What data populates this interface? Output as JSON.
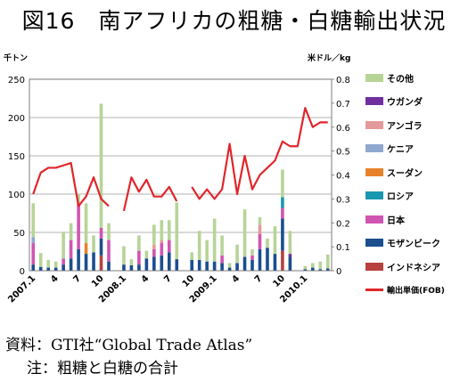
{
  "title": "図16　南アフリカの粗糖・白糖輸出状況",
  "source": "資料：GTI社“Global Trade Atlas”",
  "note": "注：粗糖と白糖の合計",
  "colors": {
    "その他": "#b7d497",
    "ウガンダ": "#7030a0",
    "アンゴラ": "#e49a9a",
    "ケニア": "#8fa8cf",
    "スーダン": "#e8822a",
    "ロシア": "#1898b0",
    "日本": "#cf55b2",
    "モザンビーク": "#1b4e8f",
    "インドネシア": "#b7413e",
    "line": "#e0262a"
  },
  "chart_data": {
    "type": "bar",
    "stacked": true,
    "left_axis_unit": "千トン",
    "right_axis_unit": "米ドル／kg",
    "y_left": {
      "min": 0,
      "max": 250,
      "ticks": [
        0,
        50,
        100,
        150,
        200,
        250
      ]
    },
    "y_right": {
      "min": 0,
      "max": 0.8,
      "ticks": [
        "0",
        "0.1",
        "0.2",
        "0.3",
        "0.4",
        "0.5",
        "0.6",
        "0.7",
        "0.8"
      ]
    },
    "grid": true,
    "legend_position": "right",
    "x_tick_labels": [
      {
        "i": 0,
        "label": "2007.1"
      },
      {
        "i": 3,
        "label": "4"
      },
      {
        "i": 6,
        "label": "7"
      },
      {
        "i": 9,
        "label": "10"
      },
      {
        "i": 12,
        "label": "2008.1"
      },
      {
        "i": 15,
        "label": "4"
      },
      {
        "i": 18,
        "label": "7"
      },
      {
        "i": 21,
        "label": "10"
      },
      {
        "i": 24,
        "label": "2009.1"
      },
      {
        "i": 27,
        "label": "4"
      },
      {
        "i": 30,
        "label": "7"
      },
      {
        "i": 33,
        "label": "10"
      },
      {
        "i": 36,
        "label": "2010.1"
      }
    ],
    "series": [
      {
        "name": "インドネシア",
        "values": [
          0,
          0,
          0,
          0,
          0,
          0,
          0,
          0,
          0,
          20,
          0,
          0,
          0,
          0,
          0,
          0,
          0,
          0,
          0,
          0,
          0,
          0,
          0,
          0,
          0,
          0,
          0,
          0,
          0,
          0,
          0,
          0,
          0,
          26,
          0,
          0,
          0,
          0,
          0,
          0
        ]
      },
      {
        "name": "モザンビーク",
        "values": [
          8,
          5,
          4,
          4,
          8,
          16,
          28,
          22,
          24,
          22,
          12,
          0,
          8,
          7,
          8,
          16,
          18,
          20,
          24,
          15,
          0,
          14,
          14,
          12,
          12,
          10,
          4,
          10,
          18,
          14,
          28,
          30,
          22,
          42,
          18,
          0,
          2,
          4,
          2,
          3
        ]
      },
      {
        "name": "日本",
        "values": [
          28,
          0,
          0,
          0,
          8,
          24,
          60,
          0,
          0,
          14,
          28,
          0,
          0,
          0,
          18,
          0,
          10,
          16,
          16,
          0,
          0,
          0,
          0,
          0,
          0,
          10,
          0,
          0,
          0,
          6,
          20,
          0,
          0,
          14,
          0,
          0,
          0,
          0,
          0,
          0
        ]
      },
      {
        "name": "ロシア",
        "values": [
          0,
          0,
          0,
          0,
          0,
          0,
          0,
          0,
          0,
          0,
          0,
          0,
          0,
          0,
          0,
          0,
          0,
          0,
          0,
          0,
          0,
          0,
          0,
          0,
          0,
          0,
          0,
          0,
          0,
          0,
          0,
          0,
          0,
          14,
          0,
          0,
          0,
          0,
          0,
          0
        ]
      },
      {
        "name": "スーダン",
        "values": [
          0,
          0,
          0,
          0,
          0,
          0,
          0,
          14,
          0,
          0,
          0,
          0,
          0,
          0,
          0,
          0,
          0,
          0,
          0,
          0,
          0,
          0,
          0,
          0,
          0,
          0,
          0,
          0,
          0,
          0,
          0,
          0,
          0,
          0,
          0,
          0,
          0,
          0,
          0,
          0
        ]
      },
      {
        "name": "ケニア",
        "values": [
          8,
          0,
          0,
          0,
          0,
          0,
          0,
          0,
          0,
          0,
          0,
          0,
          0,
          0,
          0,
          0,
          0,
          0,
          0,
          0,
          0,
          0,
          0,
          0,
          0,
          0,
          0,
          0,
          0,
          0,
          0,
          0,
          0,
          0,
          0,
          0,
          0,
          0,
          0,
          0
        ]
      },
      {
        "name": "アンゴラ",
        "values": [
          0,
          0,
          0,
          0,
          0,
          0,
          0,
          0,
          0,
          0,
          0,
          0,
          0,
          0,
          0,
          0,
          6,
          4,
          0,
          0,
          0,
          0,
          0,
          0,
          0,
          0,
          0,
          0,
          0,
          0,
          12,
          0,
          0,
          0,
          0,
          0,
          0,
          0,
          0,
          0
        ]
      },
      {
        "name": "ウガンダ",
        "values": [
          0,
          0,
          0,
          0,
          0,
          0,
          0,
          0,
          0,
          0,
          0,
          0,
          0,
          0,
          0,
          0,
          0,
          0,
          0,
          0,
          0,
          0,
          0,
          0,
          0,
          0,
          0,
          0,
          0,
          0,
          0,
          0,
          0,
          0,
          4,
          0,
          0,
          0,
          0,
          0
        ]
      },
      {
        "name": "その他",
        "values": [
          44,
          18,
          10,
          8,
          35,
          22,
          12,
          52,
          22,
          162,
          22,
          0,
          24,
          8,
          20,
          10,
          26,
          26,
          26,
          74,
          0,
          10,
          38,
          28,
          56,
          26,
          6,
          24,
          62,
          8,
          10,
          12,
          36,
          36,
          30,
          0,
          4,
          6,
          10,
          18
        ]
      }
    ],
    "line_series": {
      "name": "輸出単価(FOB)",
      "axis": "right",
      "values": [
        0.32,
        0.41,
        0.43,
        0.43,
        0.44,
        0.45,
        0.27,
        0.31,
        0.39,
        0.3,
        0.27,
        null,
        0.25,
        0.39,
        0.33,
        0.38,
        0.31,
        0.31,
        0.35,
        0.29,
        null,
        0.35,
        0.3,
        0.34,
        0.3,
        0.34,
        0.53,
        0.32,
        0.48,
        0.34,
        0.4,
        0.43,
        0.46,
        0.54,
        0.52,
        0.52,
        0.68,
        0.6,
        0.62,
        0.62
      ]
    }
  }
}
